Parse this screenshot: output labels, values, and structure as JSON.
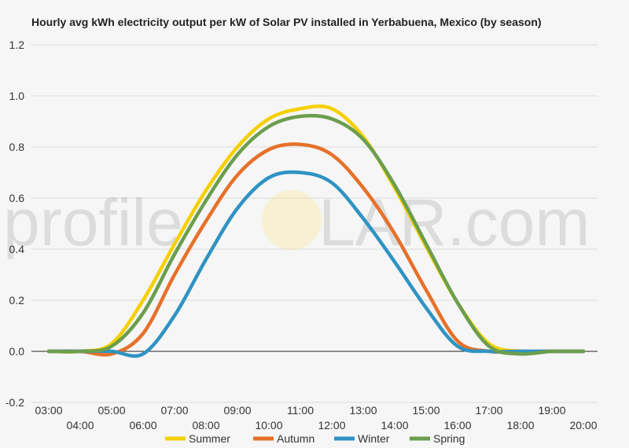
{
  "chart_data": {
    "type": "line",
    "title": "Hourly avg kWh electricity output per kW of Solar PV installed in Yerbabuena, Mexico (by season)",
    "xlabel": "",
    "ylabel": "",
    "x": [
      "03:00",
      "04:00",
      "05:00",
      "06:00",
      "07:00",
      "08:00",
      "09:00",
      "10:00",
      "11:00",
      "12:00",
      "13:00",
      "14:00",
      "15:00",
      "16:00",
      "17:00",
      "18:00",
      "19:00",
      "20:00"
    ],
    "ylim": [
      -0.2,
      1.2
    ],
    "yticks": [
      "-0.2",
      "0.0",
      "0.2",
      "0.4",
      "0.6",
      "0.8",
      "1.0",
      "1.2"
    ],
    "grid": true,
    "legend_position": "bottom",
    "series": [
      {
        "name": "Summer",
        "color": "#f5d000",
        "values": [
          0,
          0,
          0.03,
          0.2,
          0.42,
          0.63,
          0.8,
          0.91,
          0.95,
          0.95,
          0.84,
          0.64,
          0.41,
          0.19,
          0.03,
          0,
          0,
          0
        ]
      },
      {
        "name": "Autumn",
        "color": "#e6712a",
        "values": [
          0,
          0,
          -0.01,
          0.07,
          0.3,
          0.51,
          0.69,
          0.79,
          0.81,
          0.77,
          0.64,
          0.46,
          0.24,
          0.04,
          0,
          0,
          0,
          0
        ]
      },
      {
        "name": "Winter",
        "color": "#2f93c3",
        "values": [
          0,
          0,
          0,
          -0.01,
          0.14,
          0.36,
          0.56,
          0.68,
          0.7,
          0.66,
          0.52,
          0.35,
          0.17,
          0.02,
          0,
          0,
          0,
          0
        ]
      },
      {
        "name": "Spring",
        "color": "#6b9e4e",
        "values": [
          0,
          0,
          0.02,
          0.15,
          0.38,
          0.59,
          0.77,
          0.88,
          0.92,
          0.91,
          0.83,
          0.65,
          0.42,
          0.19,
          0.02,
          -0.01,
          0,
          0
        ]
      }
    ]
  },
  "watermark": {
    "left": "profile",
    "right": "LAR.com"
  }
}
